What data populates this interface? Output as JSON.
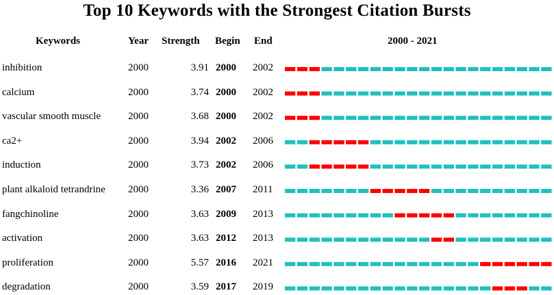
{
  "chart_data": {
    "type": "table",
    "title": "Top 10 Keywords with the Strongest Citation Bursts",
    "columns": [
      "Keywords",
      "Year",
      "Strength",
      "Begin",
      "End",
      "2000 - 2021"
    ],
    "timeline": {
      "start": 2000,
      "end": 2021,
      "label": "2000 - 2021"
    },
    "rows": [
      {
        "keyword": "inhibition",
        "year": "2000",
        "strength": "3.91",
        "begin": "2000",
        "end": "2002"
      },
      {
        "keyword": "calcium",
        "year": "2000",
        "strength": "3.74",
        "begin": "2000",
        "end": "2002"
      },
      {
        "keyword": "vascular smooth muscle",
        "year": "2000",
        "strength": "3.68",
        "begin": "2000",
        "end": "2002"
      },
      {
        "keyword": "ca2+",
        "year": "2000",
        "strength": "3.94",
        "begin": "2002",
        "end": "2006"
      },
      {
        "keyword": "induction",
        "year": "2000",
        "strength": "3.73",
        "begin": "2002",
        "end": "2006"
      },
      {
        "keyword": "plant alkaloid tetrandrine",
        "year": "2000",
        "strength": "3.36",
        "begin": "2007",
        "end": "2011"
      },
      {
        "keyword": "fangchinoline",
        "year": "2000",
        "strength": "3.63",
        "begin": "2009",
        "end": "2013"
      },
      {
        "keyword": "activation",
        "year": "2000",
        "strength": "3.63",
        "begin": "2012",
        "end": "2013"
      },
      {
        "keyword": "proliferation",
        "year": "2000",
        "strength": "5.57",
        "begin": "2016",
        "end": "2021"
      },
      {
        "keyword": "degradation",
        "year": "2000",
        "strength": "3.59",
        "begin": "2017",
        "end": "2019"
      }
    ],
    "colors": {
      "burst": "#ff0000",
      "baseline": "#1fc0c0"
    }
  }
}
